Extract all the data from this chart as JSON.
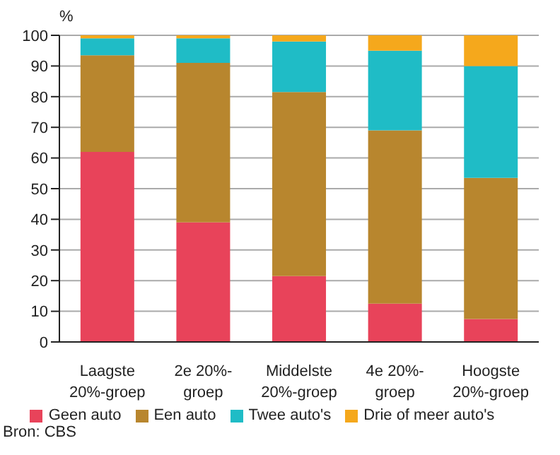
{
  "chart_data": {
    "type": "bar",
    "stacked": true,
    "ylabel": "%",
    "categories": [
      "Laagste\n20%-groep",
      "2e 20%-\ngroep",
      "Middelste\n20%-groep",
      "4e 20%-\ngroep",
      "Hoogste\n20%-groep"
    ],
    "series": [
      {
        "name": "Geen auto",
        "color": "#e8435a",
        "values": [
          62,
          39,
          21.5,
          12.5,
          7.5
        ]
      },
      {
        "name": "Een auto",
        "color": "#b8862e",
        "values": [
          31.5,
          52,
          60,
          56.5,
          46
        ]
      },
      {
        "name": "Twee auto's",
        "color": "#1fbcc6",
        "values": [
          5.5,
          8,
          16.5,
          26,
          36.5
        ]
      },
      {
        "name": "Drie of meer auto's",
        "color": "#f5a81c",
        "values": [
          1,
          1,
          2,
          5,
          10
        ]
      }
    ],
    "ylim": [
      0,
      100
    ],
    "yticks": [
      0,
      10,
      20,
      30,
      40,
      50,
      60,
      70,
      80,
      90,
      100
    ],
    "grid": "y",
    "legend": "bottom",
    "annotations": [
      "Bron: CBS"
    ]
  }
}
